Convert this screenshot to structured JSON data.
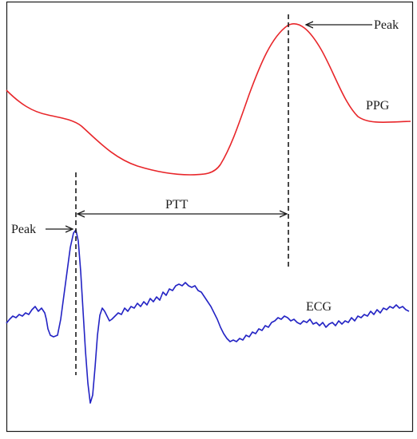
{
  "labels": {
    "peak_ppg": "Peak",
    "ppg": "PPG",
    "ptt": "PTT",
    "peak_ecg": "Peak",
    "ecg": "ECG"
  },
  "colors": {
    "ppg": "#e8262a",
    "ecg": "#2323c4",
    "annotation": "#1a1a1a",
    "frame": "#1a1a1a"
  }
}
